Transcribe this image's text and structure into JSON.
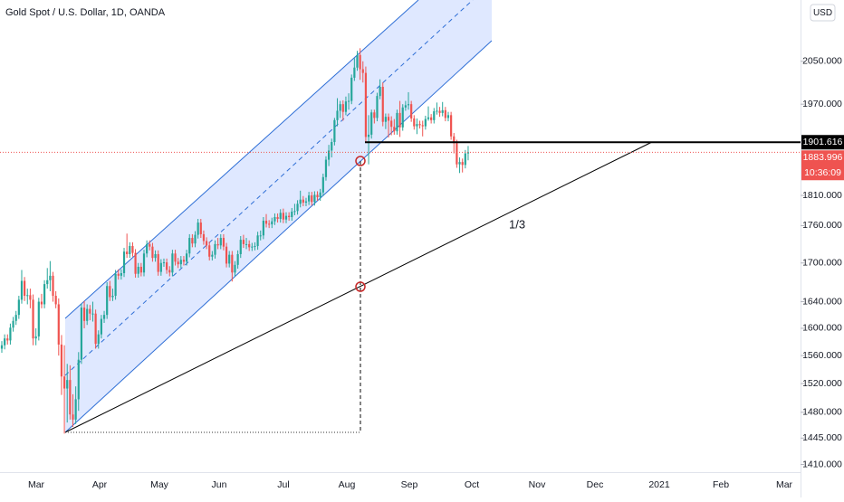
{
  "chart_data": {
    "type": "candlestick",
    "title": "Gold Spot / U.S. Dollar, 1D, OANDA",
    "currency": "USD",
    "annotation": "1/3",
    "log_scale": true,
    "up_color": "#26a69a",
    "down_color": "#ef5350",
    "ylim": [
      1400,
      2170
    ],
    "yticks": [
      {
        "value": 2050,
        "label": "2050.000"
      },
      {
        "value": 1970,
        "label": "1970.000"
      },
      {
        "value": 1810,
        "label": "1810.000"
      },
      {
        "value": 1760,
        "label": "1760.000"
      },
      {
        "value": 1700,
        "label": "1700.000"
      },
      {
        "value": 1640,
        "label": "1640.000"
      },
      {
        "value": 1600,
        "label": "1600.000"
      },
      {
        "value": 1560,
        "label": "1560.000"
      },
      {
        "value": 1520,
        "label": "1520.000"
      },
      {
        "value": 1480,
        "label": "1480.000"
      },
      {
        "value": 1445,
        "label": "1445.000"
      },
      {
        "value": 1410,
        "label": "1410.000"
      }
    ],
    "x_labels": [
      "Mar",
      "Apr",
      "May",
      "Jun",
      "Jul",
      "Aug",
      "Sep",
      "Oct",
      "Nov",
      "Dec",
      "2021",
      "Feb",
      "Mar"
    ],
    "horizontal_line": 1901.616,
    "last_price": 1883.996,
    "countdown": "10:36:09",
    "ohlc": [
      [
        1570,
        1581,
        1564,
        1575
      ],
      [
        1575,
        1591,
        1569,
        1585
      ],
      [
        1585,
        1591,
        1576,
        1582
      ],
      [
        1582,
        1607,
        1576,
        1601
      ],
      [
        1601,
        1617,
        1595,
        1611
      ],
      [
        1611,
        1626,
        1605,
        1620
      ],
      [
        1620,
        1649,
        1614,
        1643
      ],
      [
        1643,
        1689,
        1637,
        1672
      ],
      [
        1672,
        1678,
        1641,
        1649
      ],
      [
        1649,
        1660,
        1636,
        1650
      ],
      [
        1650,
        1660,
        1630,
        1643
      ],
      [
        1643,
        1651,
        1575,
        1585
      ],
      [
        1585,
        1600,
        1575,
        1588
      ],
      [
        1588,
        1646,
        1582,
        1640
      ],
      [
        1640,
        1652,
        1630,
        1636
      ],
      [
        1636,
        1673,
        1630,
        1667
      ],
      [
        1667,
        1692,
        1660,
        1673
      ],
      [
        1673,
        1703,
        1656,
        1680
      ],
      [
        1680,
        1686,
        1640,
        1649
      ],
      [
        1649,
        1656,
        1630,
        1636
      ],
      [
        1636,
        1645,
        1560,
        1576
      ],
      [
        1576,
        1590,
        1504,
        1530
      ],
      [
        1530,
        1575,
        1451,
        1513
      ],
      [
        1513,
        1548,
        1466,
        1525
      ],
      [
        1525,
        1546,
        1470,
        1477
      ],
      [
        1477,
        1505,
        1460,
        1470
      ],
      [
        1470,
        1516,
        1464,
        1498
      ],
      [
        1498,
        1565,
        1482,
        1554
      ],
      [
        1554,
        1637,
        1548,
        1631
      ],
      [
        1631,
        1641,
        1600,
        1611
      ],
      [
        1611,
        1636,
        1605,
        1629
      ],
      [
        1629,
        1635,
        1612,
        1622
      ],
      [
        1622,
        1640,
        1610,
        1622
      ],
      [
        1622,
        1628,
        1570,
        1577
      ],
      [
        1577,
        1597,
        1570,
        1591
      ],
      [
        1591,
        1620,
        1585,
        1614
      ],
      [
        1614,
        1626,
        1608,
        1620
      ],
      [
        1620,
        1670,
        1614,
        1664
      ],
      [
        1664,
        1672,
        1641,
        1647
      ],
      [
        1647,
        1660,
        1641,
        1649
      ],
      [
        1649,
        1689,
        1643,
        1683
      ],
      [
        1683,
        1690,
        1674,
        1680
      ],
      [
        1680,
        1690,
        1674,
        1684
      ],
      [
        1684,
        1724,
        1678,
        1718
      ],
      [
        1718,
        1747,
        1708,
        1714
      ],
      [
        1714,
        1733,
        1708,
        1727
      ],
      [
        1727,
        1733,
        1710,
        1716
      ],
      [
        1716,
        1722,
        1677,
        1683
      ],
      [
        1683,
        1700,
        1677,
        1694
      ],
      [
        1694,
        1700,
        1679,
        1685
      ],
      [
        1685,
        1721,
        1679,
        1715
      ],
      [
        1715,
        1736,
        1709,
        1730
      ],
      [
        1730,
        1736,
        1720,
        1726
      ],
      [
        1726,
        1732,
        1702,
        1708
      ],
      [
        1708,
        1720,
        1702,
        1714
      ],
      [
        1714,
        1720,
        1680,
        1686
      ],
      [
        1686,
        1706,
        1680,
        1700
      ],
      [
        1700,
        1707,
        1694,
        1701
      ],
      [
        1701,
        1707,
        1683,
        1689
      ],
      [
        1689,
        1695,
        1679,
        1685
      ],
      [
        1685,
        1721,
        1679,
        1715
      ],
      [
        1715,
        1721,
        1696,
        1702
      ],
      [
        1702,
        1708,
        1692,
        1698
      ],
      [
        1698,
        1711,
        1692,
        1705
      ],
      [
        1705,
        1711,
        1696,
        1702
      ],
      [
        1702,
        1721,
        1696,
        1715
      ],
      [
        1715,
        1746,
        1709,
        1740
      ],
      [
        1740,
        1746,
        1725,
        1731
      ],
      [
        1731,
        1751,
        1725,
        1745
      ],
      [
        1745,
        1771,
        1739,
        1765
      ],
      [
        1765,
        1771,
        1740,
        1746
      ],
      [
        1746,
        1752,
        1729,
        1735
      ],
      [
        1735,
        1741,
        1722,
        1728
      ],
      [
        1728,
        1734,
        1704,
        1710
      ],
      [
        1710,
        1719,
        1704,
        1713
      ],
      [
        1713,
        1736,
        1707,
        1730
      ],
      [
        1730,
        1740,
        1722,
        1728
      ],
      [
        1728,
        1746,
        1722,
        1740
      ],
      [
        1740,
        1746,
        1720,
        1726
      ],
      [
        1726,
        1732,
        1693,
        1699
      ],
      [
        1699,
        1719,
        1693,
        1713
      ],
      [
        1713,
        1719,
        1671,
        1685
      ],
      [
        1685,
        1703,
        1679,
        1697
      ],
      [
        1697,
        1720,
        1691,
        1714
      ],
      [
        1714,
        1743,
        1708,
        1737
      ],
      [
        1737,
        1745,
        1724,
        1730
      ],
      [
        1730,
        1740,
        1722,
        1730
      ],
      [
        1730,
        1736,
        1719,
        1725
      ],
      [
        1725,
        1732,
        1719,
        1726
      ],
      [
        1726,
        1733,
        1720,
        1727
      ],
      [
        1727,
        1750,
        1721,
        1744
      ],
      [
        1744,
        1752,
        1736,
        1744
      ],
      [
        1744,
        1774,
        1738,
        1768
      ],
      [
        1768,
        1779,
        1757,
        1763
      ],
      [
        1763,
        1769,
        1756,
        1762
      ],
      [
        1762,
        1773,
        1756,
        1767
      ],
      [
        1767,
        1780,
        1761,
        1774
      ],
      [
        1774,
        1780,
        1765,
        1771
      ],
      [
        1771,
        1787,
        1765,
        1781
      ],
      [
        1781,
        1788,
        1764,
        1770
      ],
      [
        1770,
        1782,
        1764,
        1776
      ],
      [
        1776,
        1782,
        1768,
        1774
      ],
      [
        1774,
        1789,
        1768,
        1783
      ],
      [
        1783,
        1796,
        1777,
        1784
      ],
      [
        1784,
        1802,
        1778,
        1796
      ],
      [
        1796,
        1818,
        1790,
        1803
      ],
      [
        1803,
        1809,
        1792,
        1798
      ],
      [
        1798,
        1806,
        1792,
        1800
      ],
      [
        1800,
        1816,
        1794,
        1810
      ],
      [
        1810,
        1816,
        1793,
        1799
      ],
      [
        1799,
        1817,
        1793,
        1811
      ],
      [
        1811,
        1817,
        1801,
        1807
      ],
      [
        1807,
        1821,
        1801,
        1815
      ],
      [
        1815,
        1847,
        1809,
        1841
      ],
      [
        1841,
        1877,
        1835,
        1871
      ],
      [
        1871,
        1897,
        1860,
        1887
      ],
      [
        1887,
        1908,
        1875,
        1902
      ],
      [
        1902,
        1945,
        1896,
        1941
      ],
      [
        1941,
        1981,
        1930,
        1958
      ],
      [
        1958,
        1976,
        1945,
        1970
      ],
      [
        1970,
        1977,
        1940,
        1956
      ],
      [
        1956,
        1984,
        1950,
        1975
      ],
      [
        1975,
        1990,
        1960,
        1976
      ],
      [
        1976,
        2025,
        1970,
        2019
      ],
      [
        2019,
        2056,
        2013,
        2038
      ],
      [
        2038,
        2070,
        2032,
        2062
      ],
      [
        2062,
        2075,
        2015,
        2035
      ],
      [
        2035,
        2050,
        2010,
        2028
      ],
      [
        2028,
        2040,
        1902,
        1911
      ],
      [
        1911,
        1950,
        1863,
        1915
      ],
      [
        1915,
        1960,
        1908,
        1955
      ],
      [
        1955,
        1960,
        1935,
        1945
      ],
      [
        1945,
        1991,
        1939,
        1985
      ],
      [
        1985,
        2016,
        1979,
        2002
      ],
      [
        2002,
        2010,
        1930,
        1938
      ],
      [
        1938,
        1953,
        1925,
        1947
      ],
      [
        1947,
        1953,
        1910,
        1940
      ],
      [
        1940,
        1948,
        1914,
        1929
      ],
      [
        1929,
        1943,
        1915,
        1921
      ],
      [
        1921,
        1960,
        1915,
        1954
      ],
      [
        1954,
        1976,
        1911,
        1928
      ],
      [
        1928,
        1970,
        1922,
        1964
      ],
      [
        1964,
        1976,
        1958,
        1968
      ],
      [
        1968,
        1992,
        1960,
        1970
      ],
      [
        1970,
        1976,
        1938,
        1944
      ],
      [
        1944,
        1950,
        1924,
        1930
      ],
      [
        1930,
        1944,
        1916,
        1934
      ],
      [
        1934,
        1940,
        1926,
        1932
      ],
      [
        1932,
        1940,
        1912,
        1930
      ],
      [
        1930,
        1949,
        1924,
        1943
      ],
      [
        1943,
        1966,
        1940,
        1946
      ],
      [
        1946,
        1952,
        1935,
        1941
      ],
      [
        1941,
        1963,
        1935,
        1957
      ],
      [
        1957,
        1973,
        1951,
        1958
      ],
      [
        1958,
        1965,
        1947,
        1954
      ],
      [
        1954,
        1974,
        1948,
        1959
      ],
      [
        1959,
        1965,
        1939,
        1945
      ],
      [
        1945,
        1956,
        1939,
        1950
      ],
      [
        1950,
        1956,
        1906,
        1912
      ],
      [
        1912,
        1918,
        1882,
        1900
      ],
      [
        1900,
        1906,
        1857,
        1863
      ],
      [
        1863,
        1875,
        1848,
        1867
      ],
      [
        1867,
        1873,
        1849,
        1862
      ],
      [
        1862,
        1888,
        1856,
        1882
      ],
      [
        1882,
        1895,
        1870,
        1884
      ]
    ]
  }
}
